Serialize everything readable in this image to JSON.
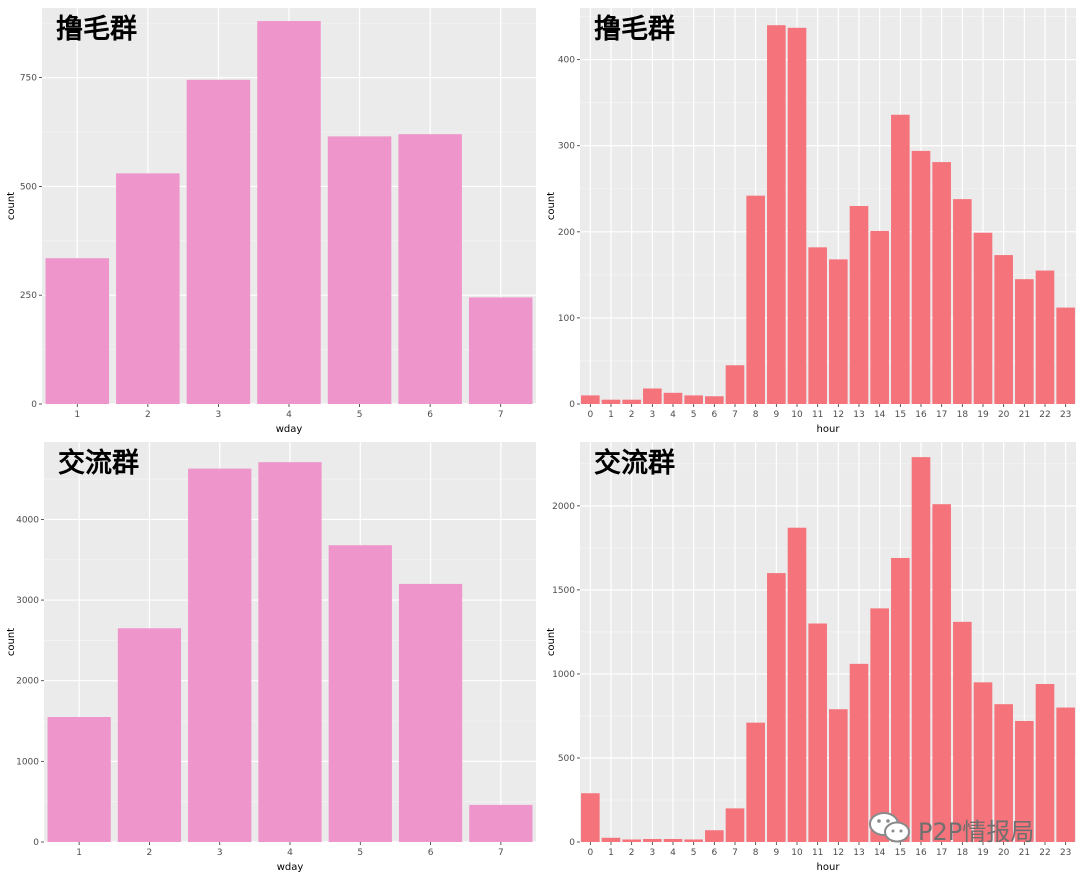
{
  "chart_data": [
    {
      "type": "bar",
      "title": "撸毛群",
      "xlabel": "wday",
      "ylabel": "count",
      "categories": [
        "1",
        "2",
        "3",
        "4",
        "5",
        "6",
        "7"
      ],
      "values": [
        335,
        530,
        745,
        880,
        615,
        620,
        245
      ],
      "ylim": [
        0,
        910
      ],
      "yticks": [
        0,
        250,
        500,
        750
      ],
      "colors": {
        "bar": "#ee96cb"
      },
      "grid": true
    },
    {
      "type": "bar",
      "title": "撸毛群",
      "xlabel": "hour",
      "ylabel": "count",
      "categories": [
        "0",
        "1",
        "2",
        "3",
        "4",
        "5",
        "6",
        "7",
        "8",
        "9",
        "10",
        "11",
        "12",
        "13",
        "14",
        "15",
        "16",
        "17",
        "18",
        "19",
        "20",
        "21",
        "22",
        "23"
      ],
      "values": [
        10,
        5,
        5,
        18,
        13,
        10,
        9,
        45,
        242,
        440,
        437,
        182,
        168,
        230,
        201,
        336,
        294,
        281,
        238,
        199,
        173,
        145,
        155,
        112
      ],
      "ylim": [
        0,
        460
      ],
      "yticks": [
        0,
        100,
        200,
        300,
        400
      ],
      "colors": {
        "bar": "#f5737b"
      },
      "grid": true
    },
    {
      "type": "bar",
      "title": "交流群",
      "xlabel": "wday",
      "ylabel": "count",
      "categories": [
        "1",
        "2",
        "3",
        "4",
        "5",
        "6",
        "7"
      ],
      "values": [
        1550,
        2650,
        4630,
        4710,
        3680,
        3200,
        460
      ],
      "ylim": [
        0,
        4960
      ],
      "yticks": [
        0,
        1000,
        2000,
        3000,
        4000
      ],
      "colors": {
        "bar": "#ee96cb"
      },
      "grid": true
    },
    {
      "type": "bar",
      "title": "交流群",
      "xlabel": "hour",
      "ylabel": "count",
      "categories": [
        "0",
        "1",
        "2",
        "3",
        "4",
        "5",
        "6",
        "7",
        "8",
        "9",
        "10",
        "11",
        "12",
        "13",
        "14",
        "15",
        "16",
        "17",
        "18",
        "19",
        "20",
        "21",
        "22",
        "23"
      ],
      "values": [
        290,
        25,
        15,
        18,
        18,
        15,
        70,
        200,
        710,
        1600,
        1870,
        1300,
        790,
        1060,
        1390,
        1690,
        2290,
        2010,
        1310,
        950,
        820,
        720,
        940,
        800
      ],
      "ylim": [
        0,
        2380
      ],
      "yticks": [
        0,
        500,
        1000,
        1500,
        2000
      ],
      "colors": {
        "bar": "#f5737b"
      },
      "grid": true
    }
  ],
  "watermark": {
    "text": "P2P情报局",
    "icon": "wechat-icon"
  },
  "theme": {
    "panel_bg": "#ebebeb",
    "grid_major": "#ffffff",
    "grid_minor": "#f4f4f4",
    "tick_text": "#4d4d4d",
    "axis_title": "#000000"
  }
}
